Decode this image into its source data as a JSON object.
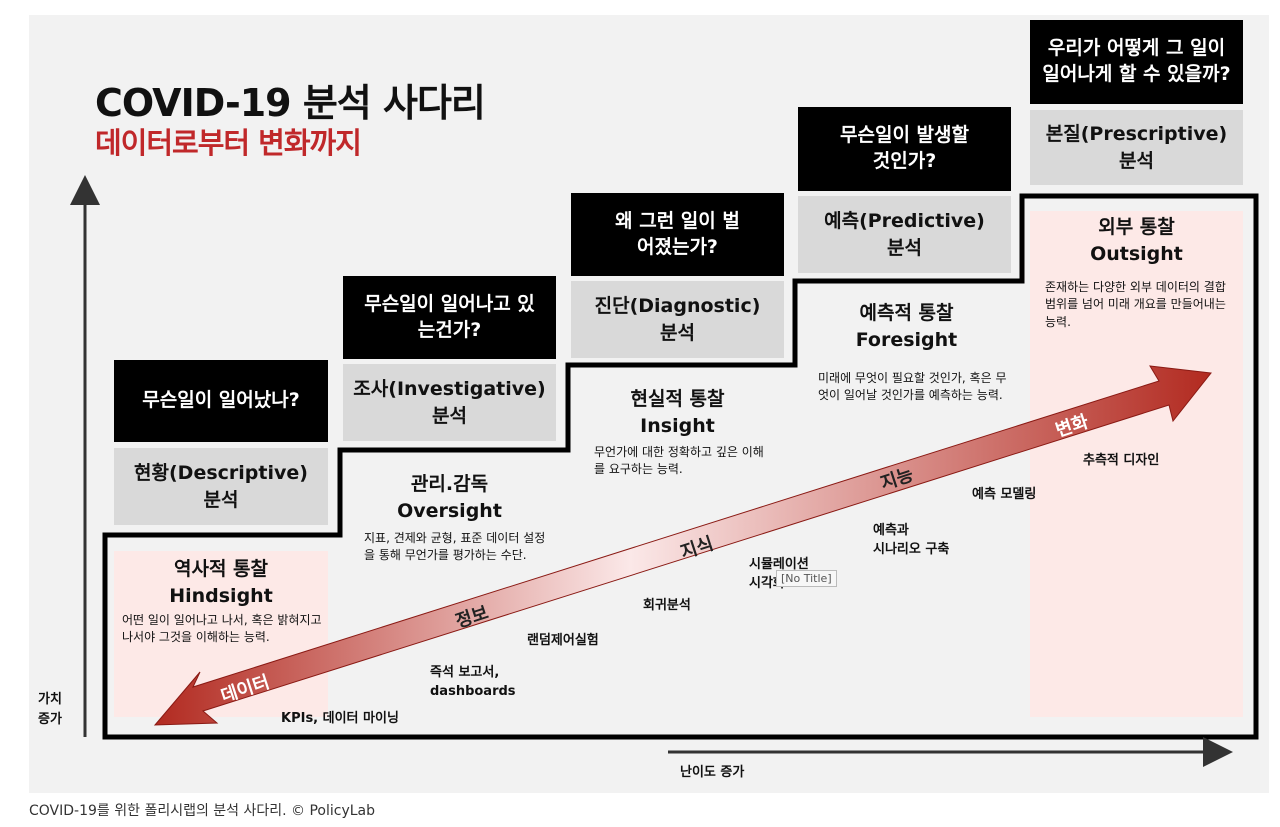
{
  "title": "COVID-19 분석 사다리",
  "subtitle": "데이터로부터 변화까지",
  "questions": [
    "무슨일이 일어났나?",
    "무슨일이 일어나고 있는건가?",
    "왜 그런 일이 벌어졌는가?",
    "무슨일이 발생할 것인가?",
    "우리가 어떻게 그 일이 일어나게 할 수 있을까?"
  ],
  "analyses": [
    "현황(Descriptive)\n분석",
    "조사(Investigative)\n분석",
    "진단(Diagnostic)\n분석",
    "예측(Predictive)\n분석",
    "본질(Prescriptive)\n분석"
  ],
  "insights": [
    {
      "title": "역사적 통찰",
      "en": "Hindsight",
      "desc": "어떤 일이 일어나고 나서, 혹은 밝혀지고나서야 그것을 이해하는 능력."
    },
    {
      "title": "관리.감독",
      "en": "Oversight",
      "desc": "지표, 견제와 균형, 표준 데이터 설정을 통해 무언가를 평가하는 수단."
    },
    {
      "title": "현실적 통찰",
      "en": "Insight",
      "desc": "무언가에 대한 정확하고 깊은 이해를 요구하는 능력."
    },
    {
      "title": "예측적 통찰",
      "en": "Foresight",
      "desc": "미래에 무엇이 필요할 것인가, 혹은 무엇이 일어날 것인가를 예측하는 능력."
    },
    {
      "title": "외부 통찰",
      "en": "Outsight",
      "desc": "존재하는 다양한 외부 데이터의 결합 범위를 넘어 미래 개요를 만들어내는 능력."
    }
  ],
  "arrow_labels": [
    "데이터",
    "정보",
    "지식",
    "지능",
    "변화"
  ],
  "techniques": [
    "KPIs, 데이터 마이닝",
    "즉석 보고서,\ndashboards",
    "랜덤제어실험",
    "회귀분석",
    "시뮬레이션\n시각화",
    "예측과\n시나리오 구축",
    "예측 모델링",
    "추측적 디자인"
  ],
  "tooltip": "[No Title]",
  "y_axis_label": "가치\n증가",
  "x_axis_label": "난이도 증가",
  "caption": "COVID-19를 위한 폴리시랩의 분석 사다리. © PolicyLab",
  "colors": {
    "accent_red": "#c0282a",
    "question_bg": "#000000",
    "analysis_bg": "#d9d9d9",
    "insight_bg": "#fde9e7"
  }
}
